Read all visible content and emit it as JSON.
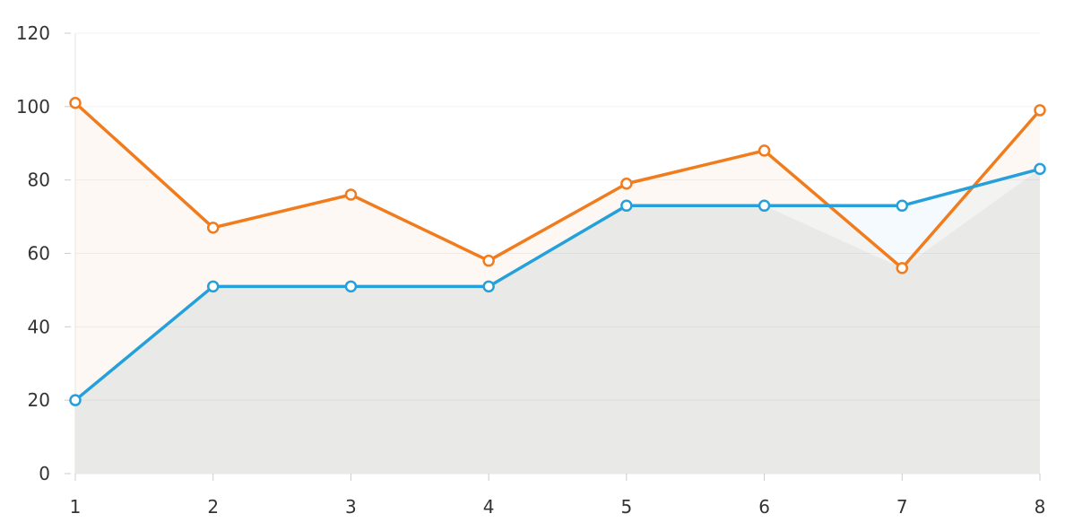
{
  "chart_data": {
    "type": "area",
    "x": [
      1,
      2,
      3,
      4,
      5,
      6,
      7,
      8
    ],
    "series": [
      {
        "values": [
          101,
          67,
          76,
          58,
          79,
          88,
          56,
          99
        ],
        "color": "#f07c1e"
      },
      {
        "values": [
          20,
          51,
          51,
          51,
          73,
          73,
          73,
          83
        ],
        "color": "#26a0da"
      }
    ],
    "ylim": [
      0,
      120
    ],
    "y_ticks": [
      0,
      20,
      40,
      60,
      80,
      100,
      120
    ],
    "x_ticks": [
      1,
      2,
      3,
      4,
      5,
      6,
      7,
      8
    ],
    "grid": true,
    "legend": "none"
  }
}
